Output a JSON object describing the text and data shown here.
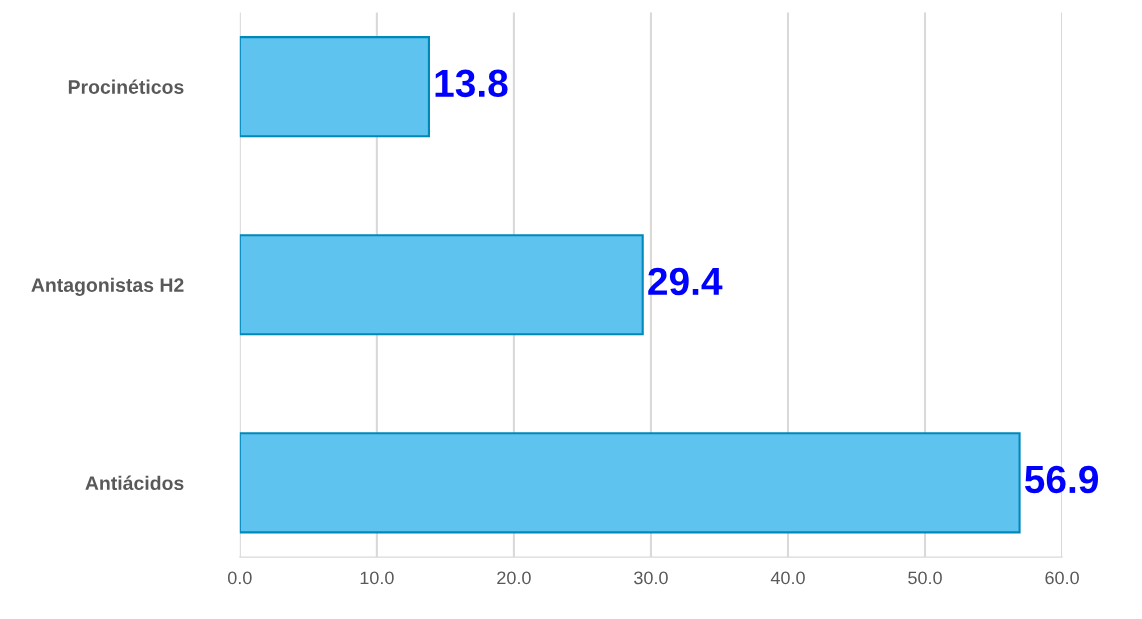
{
  "chart_data": {
    "type": "bar",
    "orientation": "horizontal",
    "categories": [
      "Procinéticos",
      "Antagonistas H2",
      "Antiácidos"
    ],
    "values": [
      13.8,
      29.4,
      56.9
    ],
    "color": "#5ec3ee",
    "xlim": [
      0,
      60
    ],
    "xticks": [
      {
        "value": 0,
        "label": "0.0"
      },
      {
        "value": 10,
        "label": "10.0"
      },
      {
        "value": 20,
        "label": "20.0"
      },
      {
        "value": 30,
        "label": "30.0"
      },
      {
        "value": 40,
        "label": "40.0"
      },
      {
        "value": 50,
        "label": "50.0"
      },
      {
        "value": 60,
        "label": "60.0"
      }
    ],
    "grid": "x",
    "data_labels": true,
    "legend": false
  }
}
